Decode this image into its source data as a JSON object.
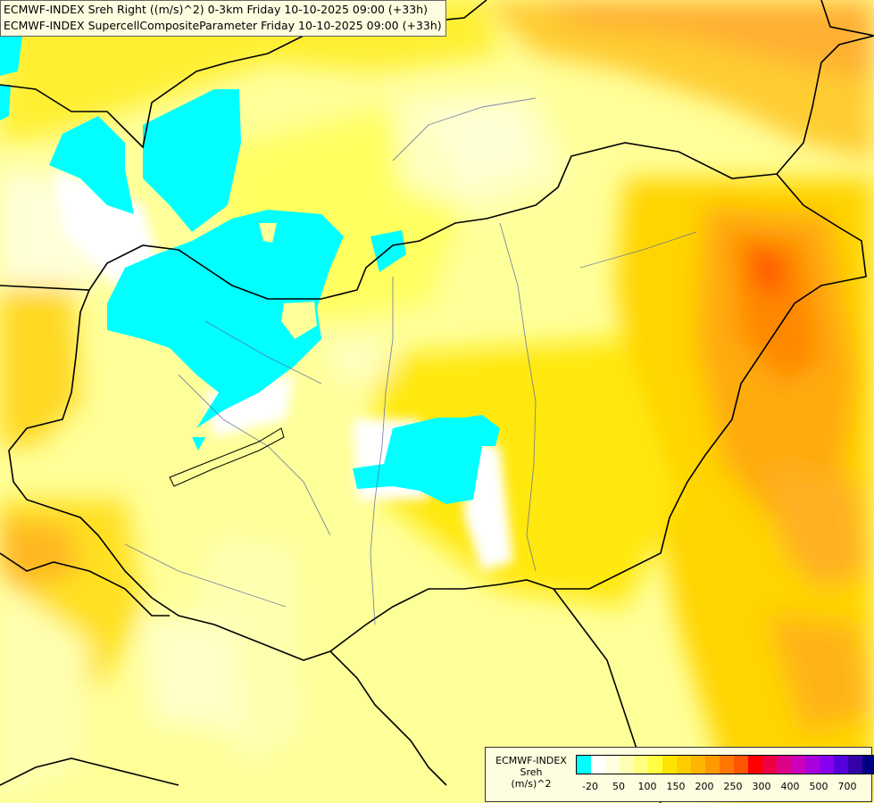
{
  "header": {
    "line1": "ECMWF-INDEX Sreh Right ((m/s)^2) 0-3km Friday 10-10-2025 09:00 (+33h)",
    "line2": "ECMWF-INDEX SupercellCompositeParameter Friday 10-10-2025 09:00 (+33h)"
  },
  "legend": {
    "source": "ECMWF-INDEX",
    "variable": "Sreh",
    "unit": "(m/s)^2",
    "colors": [
      "#00ffff",
      "#ffffff",
      "#ffffe0",
      "#ffffb4",
      "#ffff80",
      "#ffff40",
      "#ffe400",
      "#ffcc00",
      "#ffb400",
      "#ff9900",
      "#ff7700",
      "#ff5500",
      "#ff0000",
      "#ee0044",
      "#dd0088",
      "#cc00bb",
      "#aa00dd",
      "#8800ee",
      "#5500dd",
      "#3300aa",
      "#000080"
    ],
    "ticks": [
      "-20",
      "50",
      "100",
      "150",
      "200",
      "250",
      "300",
      "400",
      "500",
      "700"
    ]
  }
}
